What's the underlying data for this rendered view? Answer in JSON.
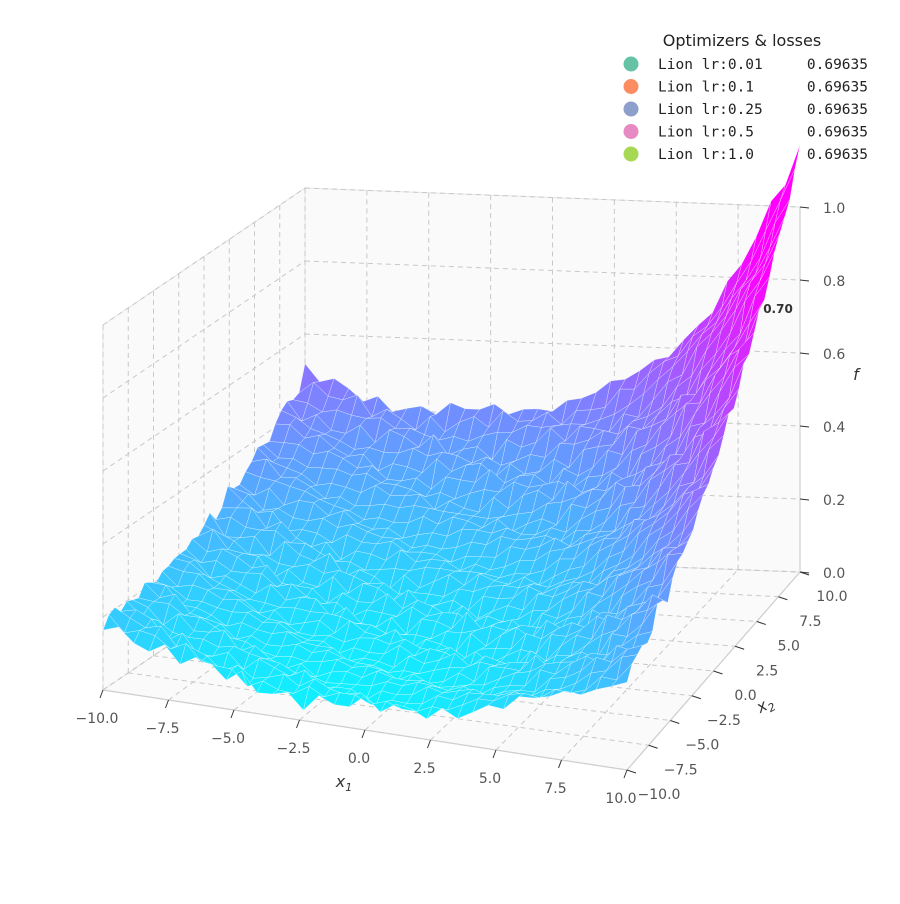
{
  "chart_data": {
    "type": "surface3d",
    "title": "",
    "x": {
      "label": "x",
      "subscript": "1",
      "range": [
        -10,
        10
      ],
      "ticks": [
        -10,
        -7.5,
        -5,
        -2.5,
        0,
        2.5,
        5,
        7.5,
        10
      ],
      "tick_labels": [
        "−10.0",
        "−7.5",
        "−5.0",
        "−2.5",
        "0.0",
        "2.5",
        "5.0",
        "7.5",
        "10.0"
      ]
    },
    "y": {
      "label": "x",
      "subscript": "2",
      "range": [
        -10,
        10
      ],
      "ticks": [
        -10,
        -7.5,
        -5,
        -2.5,
        0,
        2.5,
        5,
        7.5,
        10
      ],
      "tick_labels": [
        "−10.0",
        "−7.5",
        "−5.0",
        "−2.5",
        "0.0",
        "2.5",
        "5.0",
        "7.5",
        "10.0"
      ]
    },
    "z": {
      "label": "f",
      "range": [
        0,
        1
      ],
      "ticks": [
        0,
        0.2,
        0.4,
        0.6,
        0.8,
        1.0
      ],
      "tick_labels": [
        "0.0",
        "0.2",
        "0.4",
        "0.6",
        "0.8",
        "1.0"
      ]
    },
    "grid": true,
    "colormap": [
      "#00ffff",
      "#ff00ff"
    ],
    "surface_value_range": [
      0,
      0.9
    ],
    "annotations": [
      {
        "text": "0.70",
        "x": 10,
        "y": 10,
        "z": 0.72
      }
    ],
    "legend": {
      "title": "Optimizers & losses",
      "position": "top-right",
      "entries": [
        {
          "label": "Lion lr:0.01",
          "value": "0.69635",
          "color": "#66c2a5"
        },
        {
          "label": "Lion lr:0.1",
          "value": "0.69635",
          "color": "#fc8d62"
        },
        {
          "label": "Lion lr:0.25",
          "value": "0.69635",
          "color": "#8da0cb"
        },
        {
          "label": "Lion lr:0.5",
          "value": "0.69635",
          "color": "#e78ac3"
        },
        {
          "label": "Lion lr:1.0",
          "value": "0.69635",
          "color": "#a6d854"
        }
      ]
    }
  }
}
